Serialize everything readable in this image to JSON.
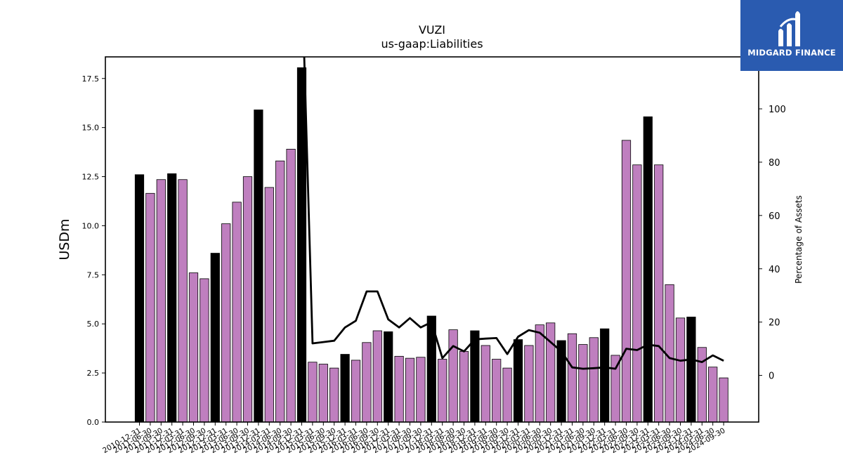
{
  "brand": {
    "name": "MIDGARD FINANCE",
    "bg_color": "#2a5bb0"
  },
  "chart_data": {
    "type": "bar",
    "title": "VUZI",
    "subtitle": "us-gaap:Liabilities",
    "ylabel": "USDm",
    "ylabel_right": "Percentage of Assets",
    "ylim": [
      0,
      18.6
    ],
    "ylim_right": [
      -17.5,
      119.5
    ],
    "yticks": [
      0.0,
      2.5,
      5.0,
      7.5,
      10.0,
      12.5,
      15.0,
      17.5
    ],
    "yticks_right": [
      0,
      20,
      40,
      60,
      80,
      100
    ],
    "colors": {
      "quarterly": "#bf7fbf",
      "annual": "#000000",
      "line": "#000000"
    },
    "grid": false,
    "categories": [
      "2010-12-31",
      "2011-06-30",
      "2011-09-30",
      "2011-12-31",
      "2012-03-31",
      "2012-06-30",
      "2012-09-30",
      "2012-12-31",
      "2013-03-31",
      "2013-06-30",
      "2013-09-30",
      "2013-12-31",
      "2014-03-31",
      "2014-06-30",
      "2014-09-30",
      "2014-12-31",
      "2015-03-31",
      "2015-06-30",
      "2015-09-30",
      "2015-12-31",
      "2016-03-31",
      "2016-06-30",
      "2016-09-30",
      "2016-12-31",
      "2017-03-31",
      "2017-06-30",
      "2017-09-30",
      "2017-12-31",
      "2018-03-31",
      "2018-06-30",
      "2018-09-30",
      "2018-12-31",
      "2019-03-31",
      "2019-06-30",
      "2019-09-30",
      "2019-12-31",
      "2020-03-31",
      "2020-06-30",
      "2020-09-30",
      "2020-12-31",
      "2021-03-31",
      "2021-06-30",
      "2021-09-30",
      "2021-12-31",
      "2022-03-31",
      "2022-06-30",
      "2022-09-30",
      "2022-12-31",
      "2023-03-31",
      "2023-06-30",
      "2023-09-30",
      "2023-12-31",
      "2024-03-31",
      "2024-06-30",
      "2024-09-30"
    ],
    "values": [
      12.6,
      11.65,
      12.35,
      12.65,
      12.35,
      7.6,
      7.3,
      8.6,
      10.1,
      11.2,
      12.5,
      15.9,
      11.95,
      13.3,
      13.9,
      18.05,
      3.05,
      2.95,
      2.75,
      3.45,
      3.15,
      4.05,
      4.65,
      4.6,
      3.35,
      3.25,
      3.3,
      5.4,
      3.2,
      4.7,
      3.6,
      4.65,
      3.9,
      3.2,
      2.75,
      4.2,
      3.9,
      4.95,
      5.05,
      4.15,
      4.5,
      3.95,
      4.3,
      4.75,
      3.4,
      14.35,
      13.1,
      15.55,
      13.1,
      7.0,
      5.3,
      5.35,
      3.8,
      2.8,
      2.25
    ],
    "is_annual": [
      true,
      false,
      false,
      true,
      false,
      false,
      false,
      true,
      false,
      false,
      false,
      true,
      false,
      false,
      false,
      true,
      false,
      false,
      false,
      true,
      false,
      false,
      false,
      true,
      false,
      false,
      false,
      true,
      false,
      false,
      false,
      true,
      false,
      false,
      false,
      true,
      false,
      false,
      false,
      true,
      false,
      false,
      false,
      true,
      false,
      false,
      false,
      true,
      false,
      false,
      false,
      true,
      false,
      false,
      false
    ],
    "series": [
      {
        "values": [
          null,
          null,
          null,
          null,
          null,
          null,
          null,
          null,
          null,
          null,
          null,
          null,
          null,
          null,
          null,
          null,
          12,
          12.5,
          13,
          18,
          20.5,
          31.5,
          31.5,
          21,
          18,
          21.5,
          18,
          20,
          6.5,
          11,
          9,
          13.5,
          13.8,
          14,
          8,
          14.5,
          17,
          16,
          12.5,
          9,
          3,
          2.5,
          2.7,
          3,
          2.5,
          10,
          9.5,
          11.5,
          11,
          6.5,
          5.5,
          6,
          5,
          7.5,
          5.5
        ]
      }
    ]
  }
}
